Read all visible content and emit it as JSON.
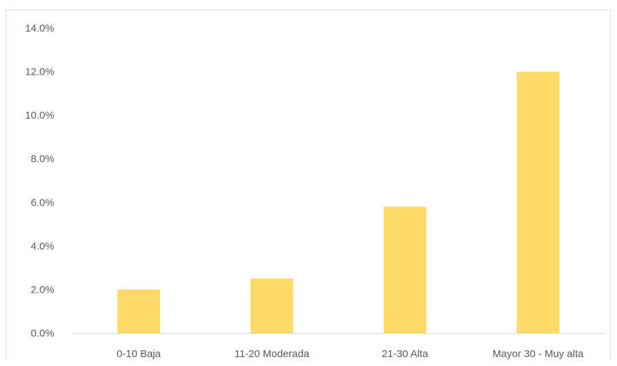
{
  "chart_data": {
    "type": "bar",
    "categories": [
      "0-10 Baja",
      "11-20 Moderada",
      "21-30 Alta",
      "Mayor 30 - Muy alta"
    ],
    "values": [
      2.0,
      2.5,
      5.8,
      12.0
    ],
    "ylim": [
      0,
      14
    ],
    "yticks": [
      "0.0%",
      "2.0%",
      "4.0%",
      "6.0%",
      "8.0%",
      "10.0%",
      "12.0%",
      "14.0%"
    ],
    "ytick_values": [
      0,
      2,
      4,
      6,
      8,
      10,
      12,
      14
    ],
    "title": "",
    "xlabel": "",
    "ylabel": "",
    "grid": false,
    "legend": "none",
    "bar_color": "#ffd966",
    "axis_color": "#d9d9d9",
    "text_color": "#595959"
  }
}
